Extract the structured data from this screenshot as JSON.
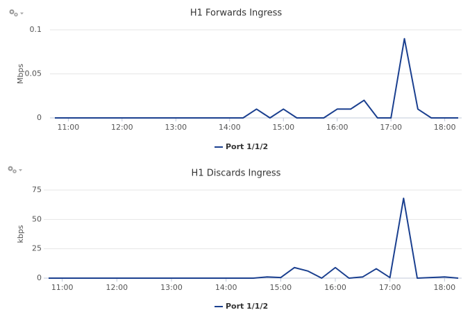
{
  "chart_data": [
    {
      "type": "line",
      "title": "H1 Forwards Ingress",
      "y_label": "Mbps",
      "x": [
        "10:45",
        "11:00",
        "11:15",
        "11:30",
        "11:45",
        "12:00",
        "12:15",
        "12:30",
        "12:45",
        "13:00",
        "13:15",
        "13:30",
        "13:45",
        "14:00",
        "14:15",
        "14:30",
        "14:45",
        "15:00",
        "15:15",
        "15:30",
        "15:45",
        "16:00",
        "16:15",
        "16:30",
        "16:45",
        "17:00",
        "17:15",
        "17:30",
        "17:45",
        "18:00",
        "18:15"
      ],
      "xlim": [
        "10:45",
        "18:15"
      ],
      "xticks": [
        "11:00",
        "12:00",
        "13:00",
        "14:00",
        "15:00",
        "16:00",
        "17:00",
        "18:00"
      ],
      "ylim": [
        0,
        0.1
      ],
      "yticks": [
        0,
        0.05,
        0.1
      ],
      "grid": true,
      "legend": "bottom",
      "series": [
        {
          "name": "Port 1/1/2",
          "color": "#1a3f8f",
          "values": [
            0,
            0,
            0,
            0,
            0,
            0,
            0,
            0,
            0,
            0,
            0,
            0,
            0,
            0,
            0,
            0.01,
            0,
            0.01,
            0,
            0,
            0,
            0.01,
            0.01,
            0.02,
            0,
            0,
            0.09,
            0.01,
            0,
            0,
            0
          ]
        }
      ]
    },
    {
      "type": "line",
      "title": "H1 Discards Ingress",
      "y_label": "kbps",
      "x": [
        "10:45",
        "11:00",
        "11:15",
        "11:30",
        "11:45",
        "12:00",
        "12:15",
        "12:30",
        "12:45",
        "13:00",
        "13:15",
        "13:30",
        "13:45",
        "14:00",
        "14:15",
        "14:30",
        "14:45",
        "15:00",
        "15:15",
        "15:30",
        "15:45",
        "16:00",
        "16:15",
        "16:30",
        "16:45",
        "17:00",
        "17:15",
        "17:30",
        "17:45",
        "18:00",
        "18:15"
      ],
      "xlim": [
        "10:45",
        "18:15"
      ],
      "xticks": [
        "11:00",
        "12:00",
        "13:00",
        "14:00",
        "15:00",
        "16:00",
        "17:00",
        "18:00"
      ],
      "ylim": [
        0,
        75
      ],
      "yticks": [
        0,
        25,
        50,
        75
      ],
      "grid": true,
      "legend": "bottom",
      "series": [
        {
          "name": "Port 1/1/2",
          "color": "#1a3f8f",
          "values": [
            0,
            0,
            0,
            0,
            0,
            0,
            0,
            0,
            0,
            0,
            0,
            0,
            0,
            0,
            0,
            0,
            1,
            0.5,
            9,
            6,
            0,
            9,
            0,
            1,
            8,
            0.5,
            68,
            0,
            0.5,
            1,
            0
          ]
        }
      ]
    }
  ]
}
